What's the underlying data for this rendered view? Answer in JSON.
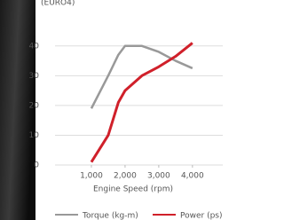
{
  "chart_data": {
    "type": "line",
    "title": "(EURO4)",
    "x_label": "Engine Speed (rpm)",
    "x": [
      1000,
      1500,
      1800,
      2000,
      2500,
      3000,
      3500,
      4000
    ],
    "series": [
      {
        "name": "Torque (kg-m)",
        "color": "#999999",
        "values": [
          19,
          30,
          37,
          40,
          40,
          38,
          35,
          32.5
        ]
      },
      {
        "name": "Power (ps)",
        "color": "#d0202a",
        "values": [
          1,
          10,
          21,
          25,
          30,
          33,
          36.5,
          41
        ]
      }
    ],
    "xlim": [
      0,
      4900
    ],
    "xticks": [
      {
        "value": 1000,
        "label": "1,000"
      },
      {
        "value": 2000,
        "label": "2,000"
      },
      {
        "value": 3000,
        "label": "3,000"
      },
      {
        "value": 4000,
        "label": "4,000"
      }
    ],
    "ylim": [
      0,
      45
    ],
    "yticks": [
      0,
      10,
      20,
      30,
      40
    ],
    "grid": true
  }
}
